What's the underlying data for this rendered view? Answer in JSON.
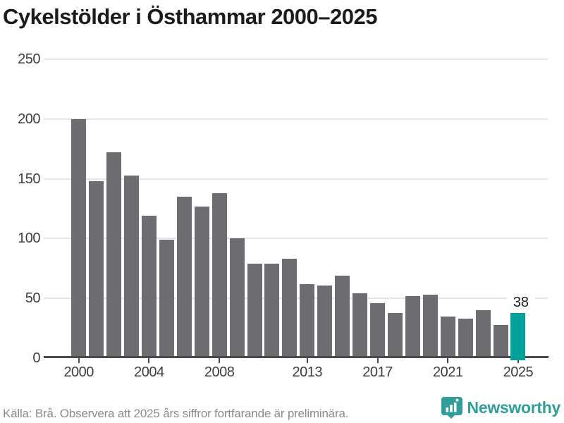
{
  "chart_data": {
    "type": "bar",
    "title": "Cykelstölder i Östhammar 2000–2025",
    "x": [
      2000,
      2001,
      2002,
      2003,
      2004,
      2005,
      2006,
      2007,
      2008,
      2009,
      2010,
      2011,
      2012,
      2013,
      2014,
      2015,
      2016,
      2017,
      2018,
      2019,
      2020,
      2021,
      2022,
      2023,
      2024,
      2025
    ],
    "values": [
      200,
      148,
      172,
      153,
      119,
      99,
      135,
      127,
      138,
      100,
      79,
      79,
      83,
      62,
      61,
      69,
      54,
      46,
      38,
      52,
      53,
      35,
      33,
      40,
      28,
      38
    ],
    "highlight_x": 2025,
    "highlight_label": "38",
    "xticks": [
      2000,
      2004,
      2008,
      2013,
      2017,
      2021,
      2025
    ],
    "yticks": [
      0,
      50,
      100,
      150,
      200,
      250
    ],
    "ylim": [
      0,
      250
    ],
    "xlabel": "",
    "ylabel": "",
    "grid": true,
    "legend": null,
    "bar_color": "#6d6d71",
    "highlight_color": "#00a39c"
  },
  "footer": {
    "source": "Källa: Brå. Observera att 2025 års siffror fortfarande är preliminära.",
    "brand": "Newsworthy",
    "brand_color": "#2f9e98"
  }
}
